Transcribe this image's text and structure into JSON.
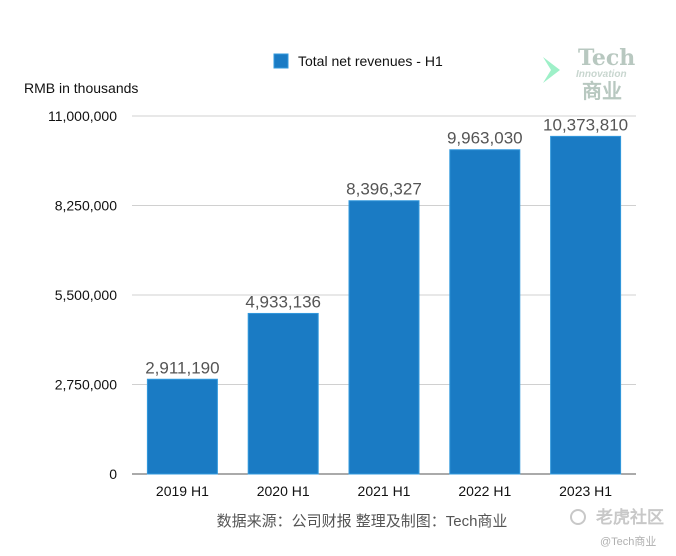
{
  "chart_data": {
    "type": "bar",
    "categories": [
      "2019 H1",
      "2020 H1",
      "2021 H1",
      "2022 H1",
      "2023 H1"
    ],
    "series": [
      {
        "name": "Total net revenues - H1",
        "values": [
          2911190,
          4933136,
          8396327,
          9963030,
          10373810
        ],
        "labels": [
          "2,911,190",
          "4,933,136",
          "8,396,327",
          "9,963,030",
          "10,373,810"
        ]
      }
    ],
    "ylabel": "RMB in thousands",
    "ylim": [
      0,
      11000000
    ],
    "yticks": [
      0,
      2750000,
      5500000,
      8250000,
      11000000
    ],
    "ytick_labels": [
      "0",
      "2,750,000",
      "5,500,000",
      "8,250,000",
      "11,000,000"
    ],
    "grid": true,
    "legend": "top-center",
    "bar_color": "#1a7bc4",
    "bar_edge_color": "#3399dd",
    "source_note": "数据来源：公司财报 整理及制图：Tech商业"
  },
  "watermark": {
    "title": "Tech",
    "subtitle": "Innovation",
    "chinese": "商业",
    "community": "老虎社区",
    "handle": "@Tech商业"
  }
}
